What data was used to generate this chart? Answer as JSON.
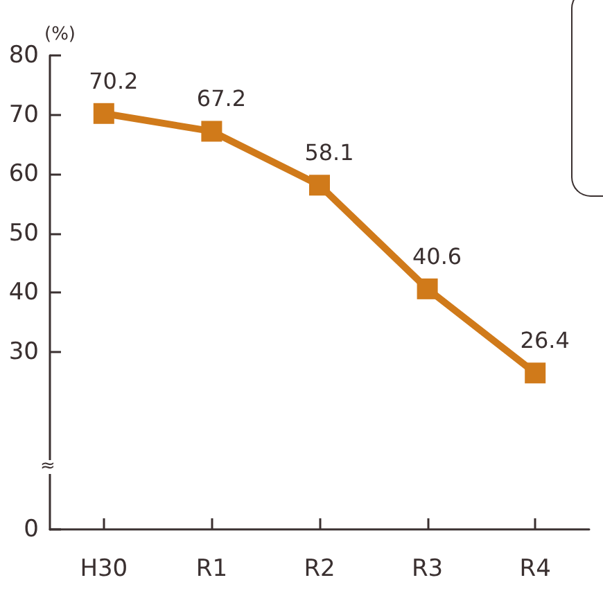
{
  "chart_data": {
    "type": "line",
    "ylabel": "(%)",
    "categories": [
      "H30",
      "R1",
      "R2",
      "R3",
      "R4"
    ],
    "series": [
      {
        "color": "#d07a1a",
        "values": [
          70.2,
          67.2,
          58.1,
          40.6,
          26.4
        ]
      }
    ],
    "ylim": [
      0,
      80
    ],
    "yticks": [
      0,
      30,
      40,
      50,
      60,
      70,
      80
    ],
    "annotations": [
      "≈"
    ],
    "data_labels": true,
    "marker": "square",
    "line_style": "solid",
    "grid": false
  }
}
